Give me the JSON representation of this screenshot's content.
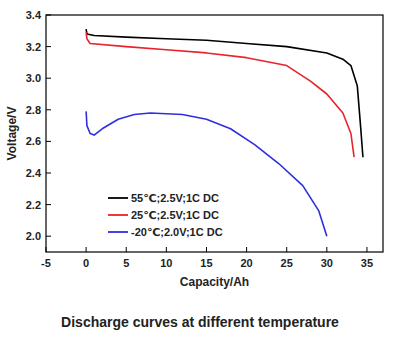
{
  "chart_data": {
    "type": "line",
    "title": "Discharge curves at different temperature",
    "x_label": "Capacity/Ah",
    "y_label": "Voltage/V",
    "xlim": [
      -5,
      37
    ],
    "ylim": [
      1.9,
      3.4
    ],
    "xticks": [
      -5,
      0,
      5,
      10,
      15,
      20,
      25,
      30,
      35
    ],
    "yticks": [
      {
        "value": 2,
        "label": "2.0"
      },
      {
        "value": 2.2,
        "label": "2.2"
      },
      {
        "value": 2.4,
        "label": "2.4"
      },
      {
        "value": 2.6,
        "label": "2.6"
      },
      {
        "value": 2.8,
        "label": "2.8"
      },
      {
        "value": 3,
        "label": "3.0"
      },
      {
        "value": 3.2,
        "label": "3.2"
      },
      {
        "value": 3.4,
        "label": "3.4"
      }
    ],
    "grid": false,
    "legend": "lower left",
    "series": [
      {
        "name": "55℃;2.5V;1C DC",
        "color": "#000000",
        "x": [
          0,
          0.1,
          1,
          5,
          10,
          15,
          20,
          25,
          30,
          32,
          33,
          33.8,
          34.2,
          34.5
        ],
        "values": [
          3.31,
          3.28,
          3.27,
          3.26,
          3.25,
          3.24,
          3.22,
          3.2,
          3.16,
          3.12,
          3.08,
          2.95,
          2.7,
          2.5
        ]
      },
      {
        "name": "25℃;2.5V;1C DC",
        "color": "#e8232b",
        "x": [
          0,
          0.1,
          0.5,
          5,
          10,
          15,
          20,
          25,
          28,
          30,
          32,
          33,
          33.4
        ],
        "values": [
          3.29,
          3.25,
          3.22,
          3.2,
          3.18,
          3.16,
          3.13,
          3.08,
          2.98,
          2.9,
          2.78,
          2.65,
          2.5
        ]
      },
      {
        "name": "-20℃;2.0V;1C DC",
        "color": "#2f2fe0",
        "x": [
          0,
          0.1,
          0.5,
          1,
          2,
          4,
          6,
          8,
          12,
          15,
          18,
          21,
          24,
          27,
          29,
          30
        ],
        "values": [
          2.79,
          2.7,
          2.65,
          2.64,
          2.68,
          2.74,
          2.77,
          2.78,
          2.77,
          2.74,
          2.68,
          2.58,
          2.46,
          2.32,
          2.16,
          2.0
        ]
      }
    ]
  }
}
